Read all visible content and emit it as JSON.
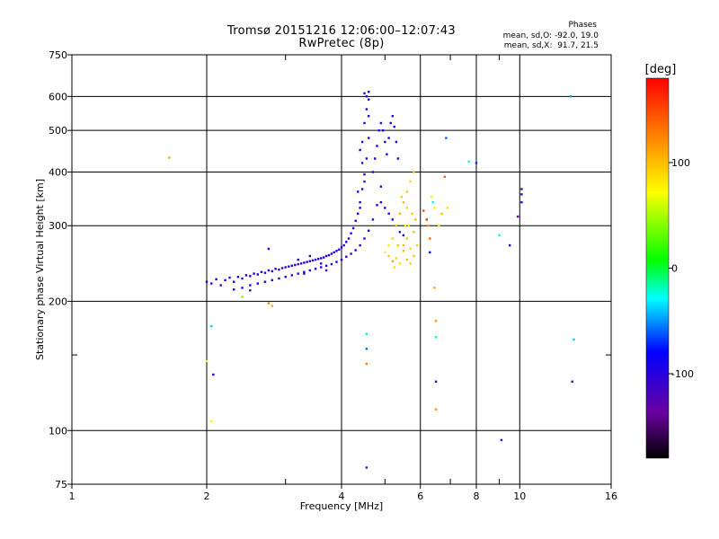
{
  "chart_data": {
    "type": "scatter",
    "title_line1": "Tromsø 20151216 12:06:00–12:07:43",
    "title_line2": "RwPretec (8p)",
    "xlabel": "Frequency [MHz]",
    "ylabel": "Stationary phase Virtual Height [km]",
    "x_scale": "log",
    "y_scale": "log",
    "xlim": [
      1,
      16
    ],
    "ylim": [
      75,
      750
    ],
    "x_ticks": [
      1,
      2,
      4,
      6,
      8,
      10,
      16
    ],
    "x_minor_ticks": [
      3,
      5,
      7,
      9
    ],
    "y_ticks": [
      75,
      100,
      200,
      300,
      400,
      500,
      600,
      750
    ],
    "y_minor_ticks": [
      150
    ],
    "grid": true,
    "phase_header": "Phases",
    "phase_o": "mean, sd,O: -92.0, 19.0",
    "phase_x": "mean, sd,X:  91.7, 21.5",
    "colorbar": {
      "label": "[deg]",
      "ticks": [
        100,
        0,
        -100
      ],
      "range": [
        -180,
        180
      ]
    },
    "series": [
      {
        "values": [
          [
            2.0,
            222,
            -95
          ],
          [
            2.05,
            220,
            -100
          ],
          [
            2.1,
            225,
            -90
          ],
          [
            2.15,
            218,
            -105
          ],
          [
            2.2,
            224,
            -95
          ],
          [
            2.25,
            227,
            -100
          ],
          [
            2.3,
            222,
            -90
          ],
          [
            2.35,
            228,
            -95
          ],
          [
            2.4,
            226,
            -110
          ],
          [
            2.45,
            230,
            -95
          ],
          [
            2.5,
            229,
            -100
          ],
          [
            2.55,
            232,
            -95
          ],
          [
            2.6,
            231,
            -90
          ],
          [
            2.65,
            234,
            -100
          ],
          [
            2.7,
            233,
            -95
          ],
          [
            2.75,
            236,
            -105
          ],
          [
            2.8,
            235,
            -95
          ],
          [
            2.85,
            238,
            -90
          ],
          [
            2.9,
            237,
            -100
          ],
          [
            2.95,
            239,
            -95
          ],
          [
            3.0,
            240,
            -100
          ],
          [
            3.05,
            241,
            -90
          ],
          [
            3.1,
            242,
            -95
          ],
          [
            3.15,
            243,
            -100
          ],
          [
            3.2,
            244,
            -105
          ],
          [
            3.25,
            245,
            -95
          ],
          [
            3.3,
            246,
            -90
          ],
          [
            3.35,
            247,
            -100
          ],
          [
            3.4,
            248,
            -95
          ],
          [
            3.45,
            249,
            -100
          ],
          [
            3.5,
            250,
            -95
          ],
          [
            3.55,
            251,
            -90
          ],
          [
            3.6,
            252,
            -100
          ],
          [
            3.65,
            253,
            -95
          ],
          [
            3.7,
            255,
            -105
          ],
          [
            3.75,
            256,
            -95
          ],
          [
            3.8,
            258,
            -100
          ],
          [
            3.85,
            260,
            -95
          ],
          [
            3.9,
            262,
            -90
          ],
          [
            3.95,
            264,
            -100
          ],
          [
            4.0,
            267,
            -95
          ],
          [
            4.05,
            270,
            -100
          ],
          [
            4.1,
            275,
            -90
          ],
          [
            4.15,
            280,
            -95
          ],
          [
            4.2,
            288,
            -100
          ],
          [
            4.25,
            296,
            -95
          ],
          [
            4.3,
            308,
            -105
          ],
          [
            4.35,
            320,
            -95
          ],
          [
            4.4,
            340,
            -100
          ],
          [
            4.45,
            365,
            -95
          ],
          [
            4.5,
            395,
            -90
          ],
          [
            4.55,
            430,
            -100
          ],
          [
            4.6,
            480,
            -95
          ],
          [
            2.4,
            215,
            -100
          ],
          [
            2.5,
            218,
            -95
          ],
          [
            2.6,
            220,
            -90
          ],
          [
            2.7,
            222,
            -100
          ],
          [
            2.8,
            224,
            -95
          ],
          [
            2.9,
            226,
            -100
          ],
          [
            3.0,
            228,
            -90
          ],
          [
            3.1,
            230,
            -95
          ],
          [
            3.2,
            232,
            -100
          ],
          [
            3.3,
            234,
            -95
          ],
          [
            3.4,
            236,
            -100
          ],
          [
            3.5,
            238,
            -90
          ],
          [
            3.6,
            240,
            -95
          ],
          [
            3.7,
            242,
            -100
          ],
          [
            3.8,
            244,
            -95
          ],
          [
            3.9,
            247,
            -100
          ],
          [
            4.0,
            250,
            -90
          ],
          [
            4.1,
            254,
            -95
          ],
          [
            4.2,
            258,
            -100
          ],
          [
            4.3,
            263,
            -95
          ],
          [
            4.4,
            270,
            -100
          ],
          [
            4.5,
            280,
            -90
          ],
          [
            4.6,
            292,
            -95
          ],
          [
            4.7,
            310,
            -100
          ],
          [
            4.8,
            335,
            -95
          ],
          [
            4.9,
            370,
            -100
          ],
          [
            4.45,
            470,
            -110
          ],
          [
            4.5,
            520,
            -100
          ],
          [
            4.55,
            560,
            -95
          ],
          [
            4.6,
            590,
            -90
          ],
          [
            4.5,
            610,
            -100
          ],
          [
            4.55,
            600,
            -95
          ],
          [
            4.6,
            540,
            -100
          ],
          [
            4.4,
            450,
            -95
          ],
          [
            4.45,
            420,
            -100
          ],
          [
            4.5,
            380,
            -110
          ],
          [
            4.35,
            360,
            -95
          ],
          [
            4.4,
            330,
            -100
          ],
          [
            4.7,
            400,
            -100
          ],
          [
            4.75,
            430,
            -95
          ],
          [
            4.8,
            460,
            -90
          ],
          [
            4.85,
            500,
            -100
          ],
          [
            4.9,
            520,
            -95
          ],
          [
            4.95,
            500,
            -100
          ],
          [
            5.0,
            470,
            -95
          ],
          [
            5.05,
            440,
            -90
          ],
          [
            5.1,
            480,
            -100
          ],
          [
            5.15,
            520,
            -95
          ],
          [
            5.2,
            540,
            -100
          ],
          [
            5.25,
            510,
            -95
          ],
          [
            5.3,
            470,
            -90
          ],
          [
            5.35,
            430,
            -100
          ],
          [
            4.9,
            340,
            -95
          ],
          [
            5.0,
            330,
            -100
          ],
          [
            5.1,
            320,
            -95
          ],
          [
            5.2,
            310,
            -90
          ],
          [
            5.3,
            300,
            -100
          ],
          [
            5.4,
            290,
            -95
          ],
          [
            5.5,
            285,
            -100
          ],
          [
            2.3,
            213,
            -80
          ],
          [
            2.5,
            212,
            -100
          ],
          [
            2.7,
            222,
            -110
          ],
          [
            3.3,
            232,
            -105
          ],
          [
            3.7,
            236,
            -110
          ],
          [
            3.2,
            250,
            -90
          ],
          [
            3.4,
            255,
            -95
          ],
          [
            3.6,
            245,
            -115
          ]
        ]
      },
      {
        "values": [
          [
            5.0,
            260,
            70
          ],
          [
            5.1,
            270,
            80
          ],
          [
            5.2,
            280,
            90
          ],
          [
            5.3,
            300,
            95
          ],
          [
            5.4,
            320,
            100
          ],
          [
            5.5,
            340,
            100
          ],
          [
            5.6,
            360,
            95
          ],
          [
            5.7,
            380,
            90
          ],
          [
            5.8,
            400,
            100
          ],
          [
            5.65,
            300,
            85
          ],
          [
            5.6,
            280,
            95
          ],
          [
            5.5,
            270,
            100
          ],
          [
            5.7,
            265,
            90
          ],
          [
            5.8,
            255,
            95
          ],
          [
            5.6,
            250,
            100
          ],
          [
            5.4,
            245,
            85
          ],
          [
            5.3,
            252,
            90
          ],
          [
            5.2,
            248,
            110
          ],
          [
            5.1,
            255,
            95
          ],
          [
            5.5,
            262,
            100
          ],
          [
            5.75,
            320,
            95
          ],
          [
            5.8,
            290,
            100
          ],
          [
            5.6,
            330,
            90
          ],
          [
            5.45,
            350,
            95
          ],
          [
            5.35,
            270,
            100
          ],
          [
            5.25,
            240,
            85
          ],
          [
            5.9,
            270,
            95
          ],
          [
            5.85,
            310,
            100
          ],
          [
            5.7,
            245,
            90
          ],
          [
            5.55,
            300,
            80
          ]
        ]
      },
      {
        "values": [
          [
            1.65,
            432,
            110
          ],
          [
            2.0,
            145,
            80
          ],
          [
            2.05,
            105,
            70
          ],
          [
            2.05,
            175,
            -40
          ],
          [
            2.07,
            135,
            -100
          ],
          [
            2.4,
            205,
            40
          ],
          [
            2.75,
            198,
            130
          ],
          [
            2.8,
            195,
            110
          ],
          [
            2.75,
            265,
            -80
          ],
          [
            4.55,
            168,
            -10
          ],
          [
            4.55,
            155,
            -60
          ],
          [
            4.55,
            143,
            130
          ],
          [
            4.55,
            82,
            -120
          ],
          [
            4.6,
            615,
            -80
          ],
          [
            6.1,
            325,
            150
          ],
          [
            6.2,
            310,
            160
          ],
          [
            6.25,
            300,
            120
          ],
          [
            6.3,
            280,
            140
          ],
          [
            6.3,
            260,
            -90
          ],
          [
            6.35,
            350,
            60
          ],
          [
            6.4,
            340,
            -30
          ],
          [
            6.45,
            330,
            80
          ],
          [
            6.45,
            215,
            110
          ],
          [
            6.5,
            180,
            120
          ],
          [
            6.5,
            165,
            -20
          ],
          [
            6.5,
            130,
            -110
          ],
          [
            6.5,
            112,
            120
          ],
          [
            6.6,
            300,
            80
          ],
          [
            6.7,
            320,
            100
          ],
          [
            6.8,
            390,
            140
          ],
          [
            6.85,
            480,
            -60
          ],
          [
            6.9,
            330,
            90
          ],
          [
            7.7,
            423,
            -20
          ],
          [
            8.0,
            420,
            -70
          ],
          [
            9.0,
            285,
            -20
          ],
          [
            9.1,
            95,
            -120
          ],
          [
            9.5,
            270,
            -110
          ],
          [
            9.9,
            315,
            -130
          ],
          [
            10.1,
            340,
            -110
          ],
          [
            10.1,
            355,
            -110
          ],
          [
            10.1,
            365,
            -110
          ],
          [
            13.0,
            600,
            -50
          ],
          [
            13.2,
            163,
            -40
          ],
          [
            13.1,
            130,
            -110
          ]
        ]
      }
    ]
  }
}
